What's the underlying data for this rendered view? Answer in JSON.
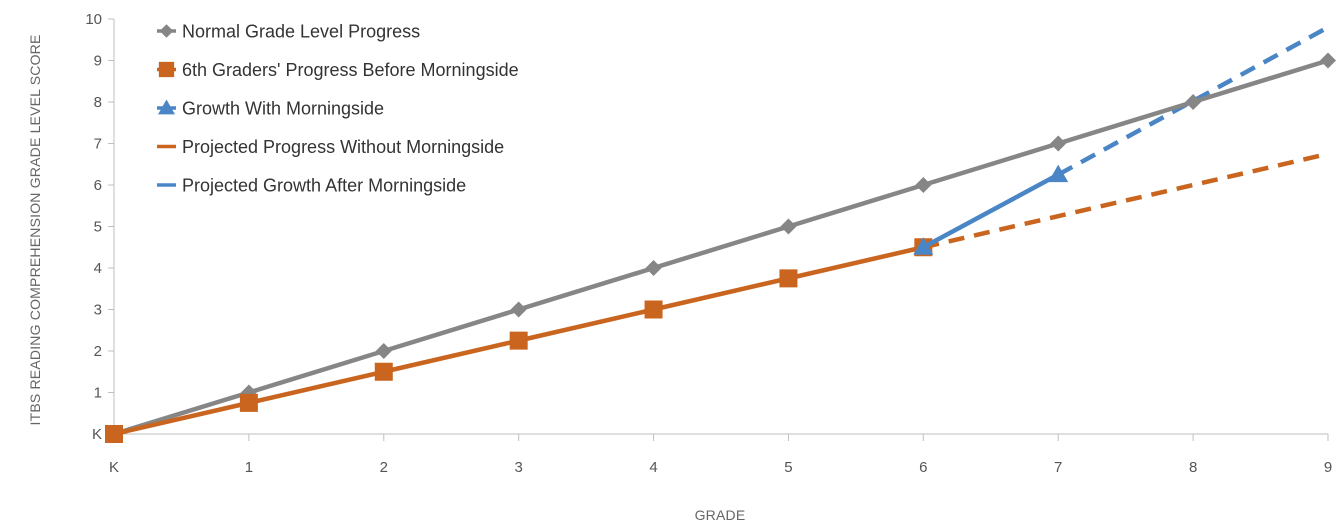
{
  "chart_data": {
    "type": "line",
    "title": "",
    "xlabel": "GRADE",
    "ylabel": "ITBS READING COMPREHENSION GRADE LEVEL SCORE",
    "x_categories": [
      "K",
      "1",
      "2",
      "3",
      "4",
      "5",
      "6",
      "7",
      "8",
      "9"
    ],
    "y_ticks": [
      "K",
      "1",
      "2",
      "3",
      "4",
      "5",
      "6",
      "7",
      "8",
      "9",
      "10"
    ],
    "ylim": [
      0,
      10
    ],
    "xlim": [
      0,
      9
    ],
    "grid": false,
    "legend_position": "top-left",
    "series": [
      {
        "name": "Normal Grade Level Progress",
        "color": "#868686",
        "marker": "diamond",
        "dash": "solid",
        "points": [
          [
            0,
            0
          ],
          [
            1,
            1
          ],
          [
            2,
            2
          ],
          [
            3,
            3
          ],
          [
            4,
            4
          ],
          [
            5,
            5
          ],
          [
            6,
            6
          ],
          [
            7,
            7
          ],
          [
            8,
            8
          ],
          [
            9,
            9
          ]
        ]
      },
      {
        "name": "6th Graders' Progress Before Morningside",
        "color": "#C9651F",
        "marker": "square",
        "dash": "solid",
        "points": [
          [
            0,
            0
          ],
          [
            1,
            0.75
          ],
          [
            2,
            1.5
          ],
          [
            3,
            2.25
          ],
          [
            4,
            3
          ],
          [
            5,
            3.75
          ],
          [
            6,
            4.5
          ]
        ]
      },
      {
        "name": "Growth With Morningside",
        "color": "#4A86C5",
        "marker": "triangle",
        "dash": "solid",
        "points": [
          [
            6,
            4.5
          ],
          [
            7,
            6.25
          ]
        ]
      },
      {
        "name": "Projected Progress Without Morningside",
        "color": "#C9651F",
        "marker": "none",
        "dash": "dashed",
        "points": [
          [
            6,
            4.5
          ],
          [
            9,
            6.75
          ]
        ]
      },
      {
        "name": "Projected Growth After Morningside",
        "color": "#4A86C5",
        "marker": "none",
        "dash": "dashed",
        "points": [
          [
            7,
            6.25
          ],
          [
            9,
            9.8
          ]
        ]
      }
    ]
  }
}
